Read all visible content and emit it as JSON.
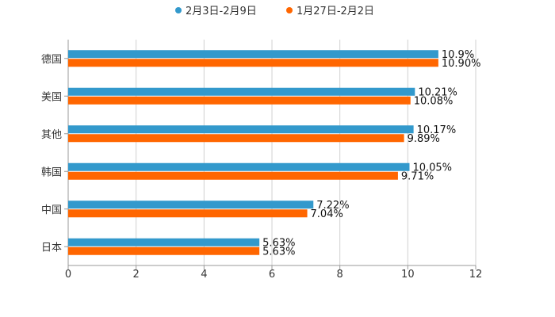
{
  "chart_data": {
    "type": "bar",
    "orientation": "horizontal",
    "categories": [
      "德国",
      "美国",
      "其他",
      "韩国",
      "中国",
      "日本"
    ],
    "series": [
      {
        "name": "2月3日-2月9日",
        "color": "#3399cc",
        "values": [
          10.9,
          10.21,
          10.17,
          10.05,
          7.22,
          5.63
        ],
        "labels": [
          "10.9%",
          "10.21%",
          "10.17%",
          "10.05%",
          "7.22%",
          "5.63%"
        ]
      },
      {
        "name": "1月27日-2月2日",
        "color": "#ff6600",
        "values": [
          10.9,
          10.08,
          9.89,
          9.71,
          7.04,
          5.63
        ],
        "labels": [
          "10.90%",
          "10.08%",
          "9.89%",
          "9.71%",
          "7.04%",
          "5.63%"
        ]
      }
    ],
    "x_ticks": [
      "0",
      "2",
      "4",
      "6",
      "8",
      "10",
      "12"
    ],
    "xlim": [
      0,
      12
    ],
    "grid": true,
    "legend_position": "top-center",
    "title": "",
    "xlabel": "",
    "ylabel": ""
  }
}
